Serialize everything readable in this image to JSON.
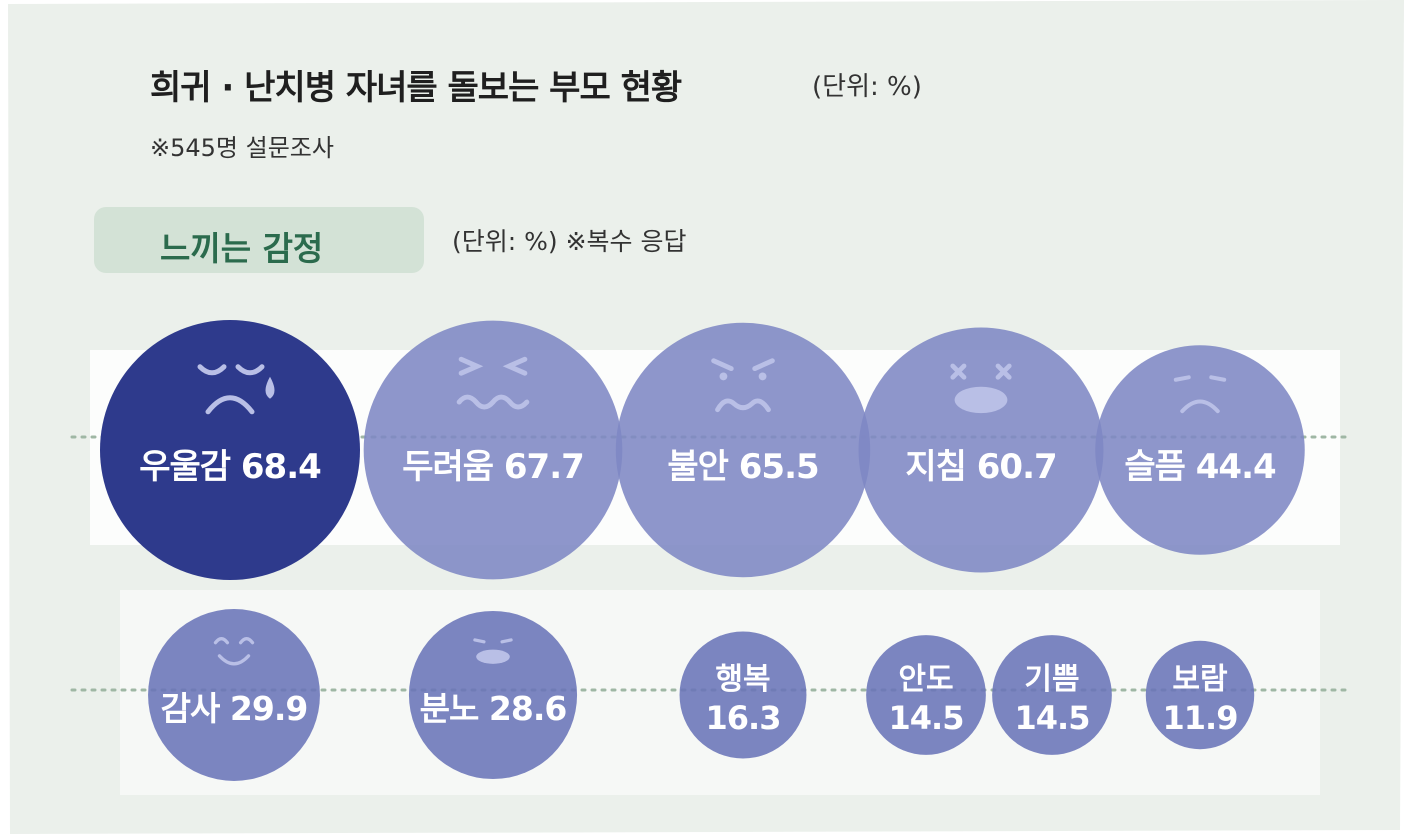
{
  "header": {
    "title": "희귀 · 난치병 자녀를 돌보는 부모 현황",
    "title_unit": "(단위: %)",
    "survey_note": "※545명 설문조사"
  },
  "section": {
    "label": "느끼는 감정",
    "unit_note": "(단위: %)  ※복수 응답"
  },
  "colors": {
    "background": "#ebf0eb",
    "band": "#ffffff",
    "bubble_highlight": "#2e3a8c",
    "bubble_primary": "#7e87c4",
    "bubble_secondary": "#6a74b8",
    "label_green": "#2b6b4d",
    "dotted_line": "#9fb7a4"
  },
  "chart_data": {
    "type": "bubble",
    "title": "느끼는 감정",
    "unit": "%",
    "highlight": "우울감",
    "rows": [
      {
        "items": [
          {
            "label": "우울감",
            "value": 68.4,
            "value_text": "68.4",
            "face": "crying"
          },
          {
            "label": "두려움",
            "value": 67.7,
            "value_text": "67.7",
            "face": "scared"
          },
          {
            "label": "불안",
            "value": 65.5,
            "value_text": "65.5",
            "face": "anxious"
          },
          {
            "label": "지침",
            "value": 60.7,
            "value_text": "60.7",
            "face": "exhausted"
          },
          {
            "label": "슬픔",
            "value": 44.4,
            "value_text": "44.4",
            "face": "sad"
          }
        ]
      },
      {
        "items": [
          {
            "label": "감사",
            "value": 29.9,
            "value_text": "29.9",
            "face": "smiling"
          },
          {
            "label": "분노",
            "value": 28.6,
            "value_text": "28.6",
            "face": "angry"
          },
          {
            "label": "행복",
            "value": 16.3,
            "value_text": "16.3",
            "face": "none"
          },
          {
            "label": "안도",
            "value": 14.5,
            "value_text": "14.5",
            "face": "none"
          },
          {
            "label": "기쁨",
            "value": 14.5,
            "value_text": "14.5",
            "face": "none"
          },
          {
            "label": "보람",
            "value": 11.9,
            "value_text": "11.9",
            "face": "none"
          }
        ]
      }
    ]
  }
}
